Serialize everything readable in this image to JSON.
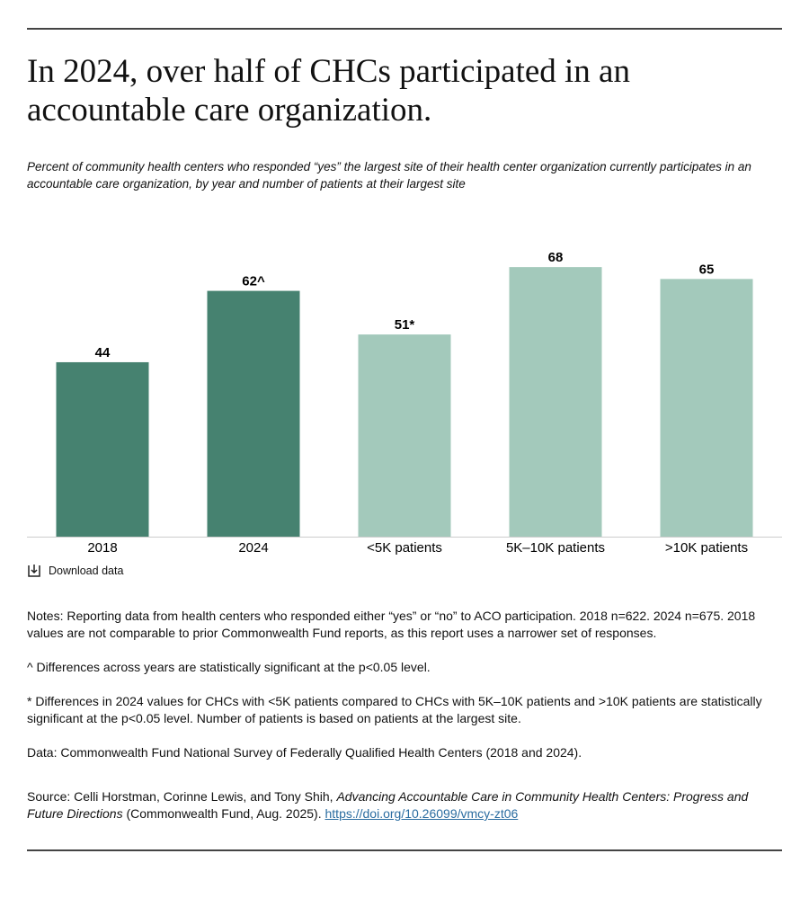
{
  "chart_data": {
    "type": "bar",
    "title": "In 2024, over half of CHCs participated in an accountable care organization.",
    "subtitle": "Percent of community health centers who responded “yes” the largest site of their health center organization currently participates in an accountable care organization, by year and number of patients at their largest site",
    "categories": [
      "2018",
      "2024",
      "<5K patients",
      "5K–10K patients",
      ">10K patients"
    ],
    "values": [
      44,
      62,
      51,
      68,
      65
    ],
    "value_labels": [
      "44",
      "62^",
      "51*",
      "68",
      "65"
    ],
    "colors": [
      "#468270",
      "#468270",
      "#a3c9bb",
      "#a3c9bb",
      "#a3c9bb"
    ],
    "download": "Download data",
    "notes": [
      "Notes: Reporting data from health centers who responded either “yes” or “no” to ACO participation. 2018 n=622. 2024 n=675. 2018 values are not comparable to prior Commonwealth Fund reports, as this report uses a narrower set of responses.",
      "^ Differences across years are statistically significant at the p<0.05 level.",
      "* Differences in 2024 values for CHCs with <5K patients compared to CHCs with 5K–10K patients and >10K patients are statistically significant at the p<0.05 level. Number of patients is based on patients at the largest site.",
      "Data: Commonwealth Fund National Survey of Federally Qualified Health Centers (2018 and 2024)."
    ],
    "source": {
      "prefix": "Source: Celli Horstman, Corinne Lewis, and Tony Shih, ",
      "title": "Advancing Accountable Care in Community Health Centers: Progress and Future Directions",
      "suffix": " (Commonwealth Fund, Aug. 2025). ",
      "link": "https://doi.org/10.26099/vmcy-zt06"
    }
  }
}
